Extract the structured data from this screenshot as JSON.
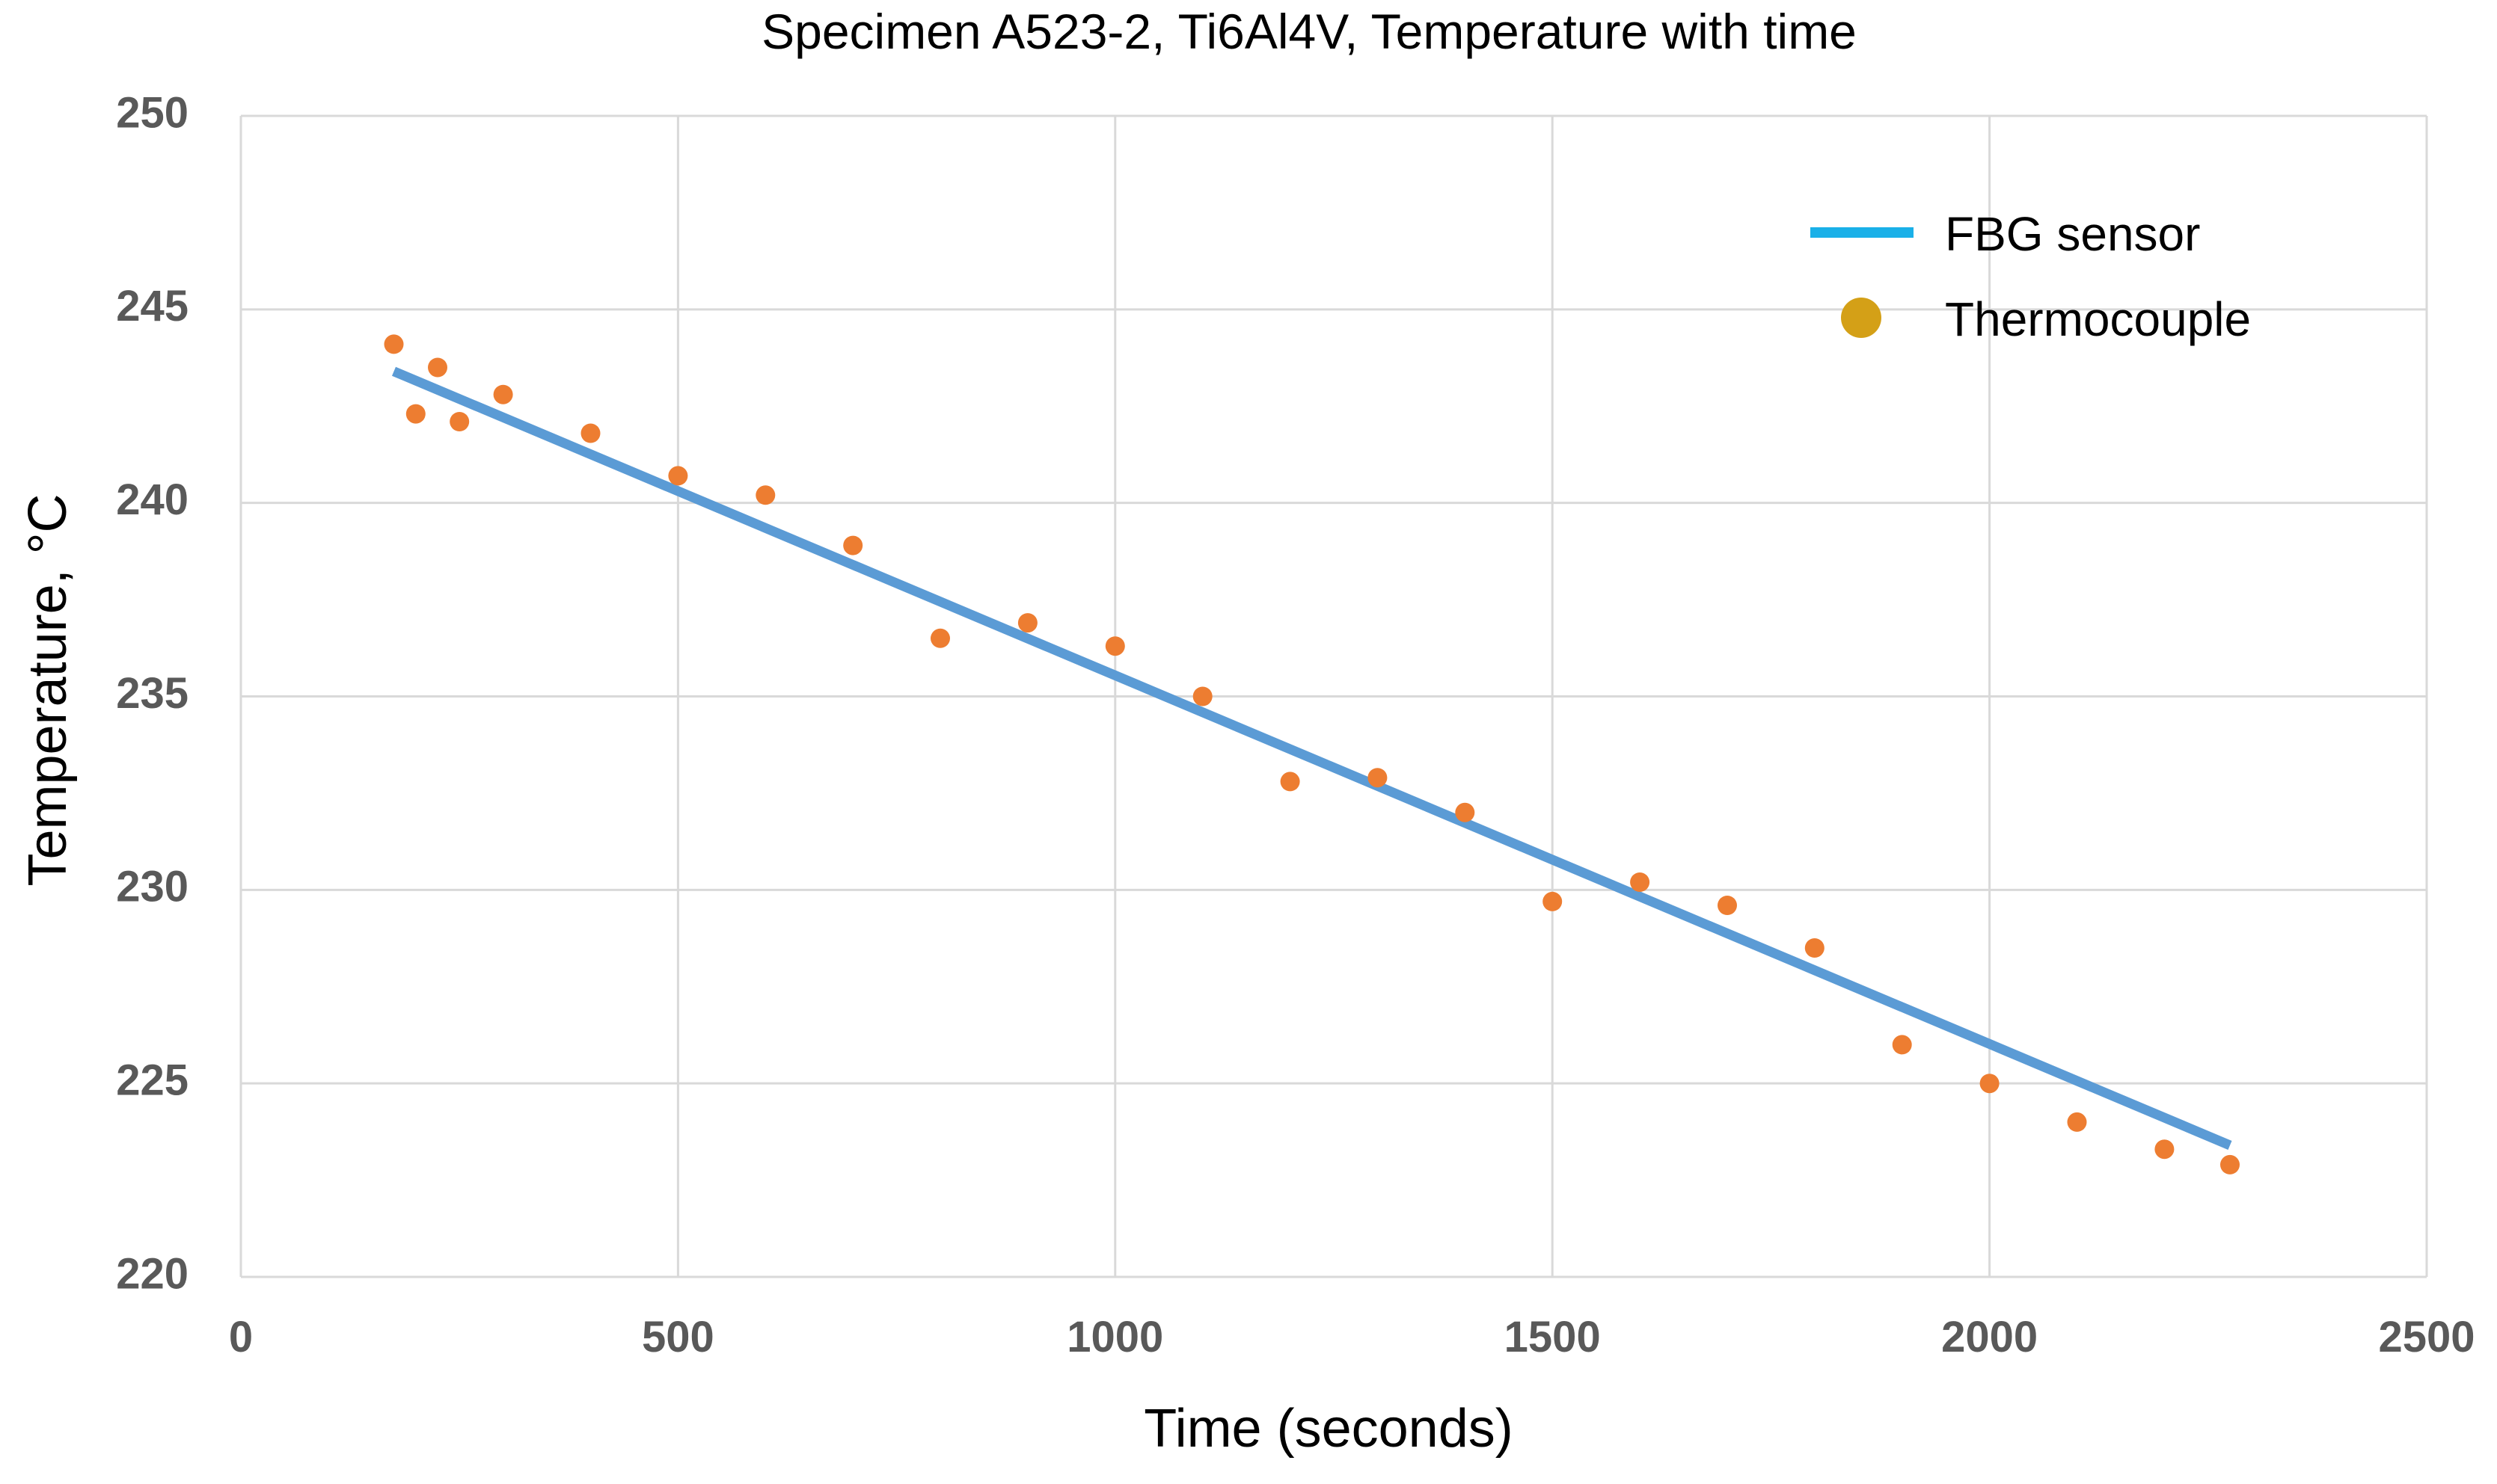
{
  "chart_data": {
    "type": "line+scatter",
    "title": "Specimen A523-2, Ti6Al4V, Temperature with time",
    "xlabel": "Time (seconds)",
    "ylabel": "Temperature, °C",
    "xlim": [
      0,
      2500
    ],
    "ylim": [
      220,
      250
    ],
    "xticks": [
      0,
      500,
      1000,
      1500,
      2000,
      2500
    ],
    "yticks": [
      220,
      225,
      230,
      235,
      240,
      245,
      250
    ],
    "grid": true,
    "legend_position": "top-right",
    "series": [
      {
        "name": "FBG sensor",
        "kind": "line",
        "color": "#5B9BD5",
        "legend_color": "#1AB0E8",
        "x": [
          175,
          2275
        ],
        "y": [
          243.4,
          223.4
        ]
      },
      {
        "name": "Thermocouple",
        "kind": "scatter",
        "color": "#ED7D31",
        "legend_color": "#D4A017",
        "x": [
          175,
          200,
          225,
          250,
          300,
          400,
          500,
          600,
          700,
          800,
          900,
          1000,
          1100,
          1200,
          1300,
          1400,
          1500,
          1600,
          1700,
          1800,
          1900,
          2000,
          2100,
          2200,
          2275
        ],
        "y": [
          244.1,
          242.3,
          243.5,
          242.1,
          242.8,
          241.8,
          240.7,
          240.2,
          238.9,
          236.5,
          236.9,
          236.3,
          235.0,
          232.8,
          232.9,
          232.0,
          229.7,
          230.2,
          229.6,
          228.5,
          226.0,
          225.0,
          224.0,
          223.3,
          222.9
        ]
      }
    ],
    "colors": {
      "axis": "#D9D9D9",
      "grid": "#D9D9D9",
      "tick_label": "#595959",
      "title": "#000000"
    }
  }
}
